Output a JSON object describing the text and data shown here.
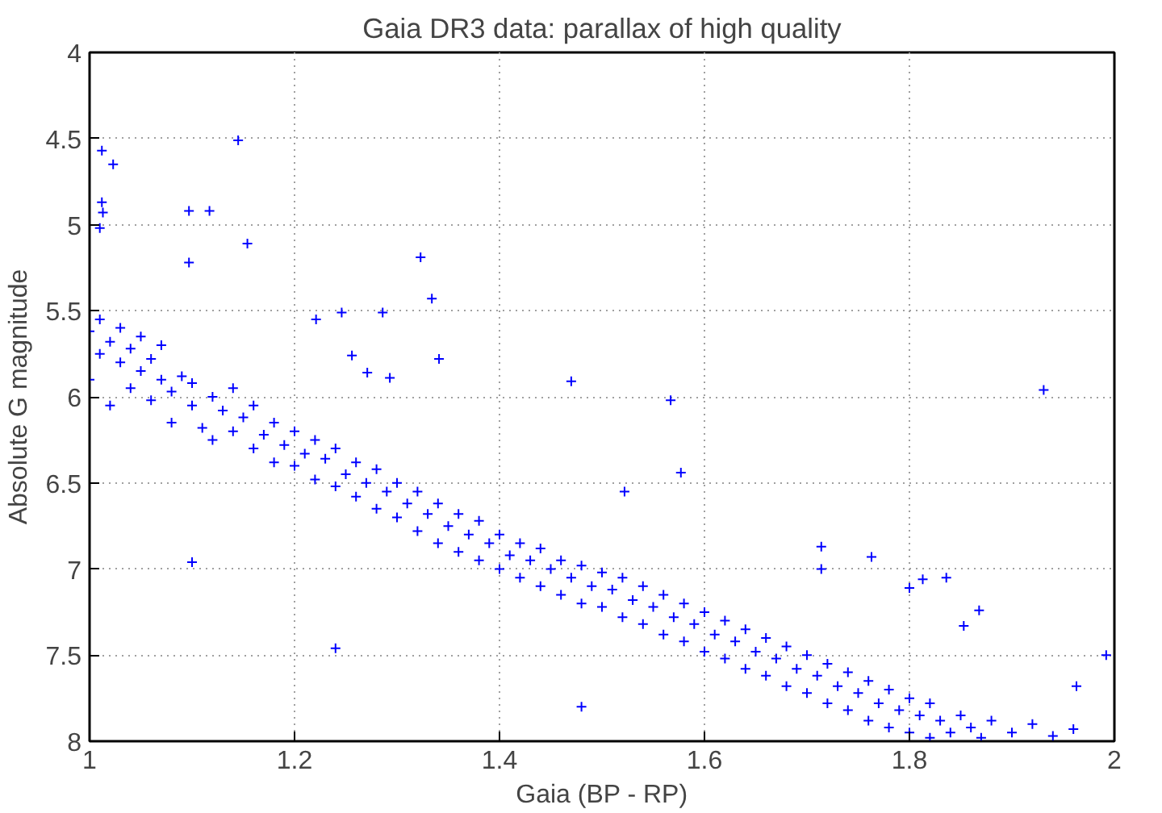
{
  "chart_data": {
    "type": "scatter",
    "title": "Gaia DR3 data: parallax of high quality",
    "xlabel": "Gaia (BP - RP)",
    "ylabel": "Absolute G magnitude",
    "xlim": [
      1,
      2
    ],
    "ylim": [
      8,
      4
    ],
    "xticks": [
      1,
      1.2,
      1.4,
      1.6,
      1.8,
      2
    ],
    "yticks": [
      4,
      4.5,
      5,
      5.5,
      6,
      6.5,
      7,
      7.5,
      8
    ],
    "grid": true,
    "marker": "cross",
    "series": [
      {
        "color": "#0000ff",
        "x": [
          1.012,
          1.023,
          1.145,
          1.012,
          1.013,
          1.01,
          1.097,
          1.117,
          1.154,
          1.097,
          1.323,
          1.334,
          1.341,
          1.271,
          1.221,
          1.246,
          1.286,
          1.256,
          1.47,
          1.293,
          1.714,
          1.714,
          1.763,
          1.813,
          1.836,
          1.8,
          1.868,
          1.853,
          1.567,
          1.577,
          1.522,
          1.963,
          1.992,
          1.931,
          1.1,
          1.24,
          1.48,
          1.0,
          1.0,
          1.01,
          1.01,
          1.02,
          1.02,
          1.03,
          1.03,
          1.04,
          1.04,
          1.05,
          1.05,
          1.06,
          1.06,
          1.07,
          1.07,
          1.08,
          1.08,
          1.09,
          1.1,
          1.1,
          1.11,
          1.12,
          1.12,
          1.13,
          1.14,
          1.14,
          1.15,
          1.16,
          1.16,
          1.17,
          1.18,
          1.18,
          1.19,
          1.2,
          1.2,
          1.21,
          1.22,
          1.22,
          1.23,
          1.24,
          1.24,
          1.25,
          1.26,
          1.26,
          1.27,
          1.28,
          1.28,
          1.29,
          1.3,
          1.3,
          1.31,
          1.32,
          1.32,
          1.33,
          1.34,
          1.34,
          1.35,
          1.36,
          1.36,
          1.37,
          1.38,
          1.38,
          1.39,
          1.4,
          1.4,
          1.41,
          1.42,
          1.42,
          1.43,
          1.44,
          1.44,
          1.45,
          1.46,
          1.46,
          1.47,
          1.48,
          1.48,
          1.49,
          1.5,
          1.5,
          1.51,
          1.52,
          1.52,
          1.53,
          1.54,
          1.54,
          1.55,
          1.56,
          1.56,
          1.57,
          1.58,
          1.58,
          1.59,
          1.6,
          1.6,
          1.61,
          1.62,
          1.62,
          1.63,
          1.64,
          1.64,
          1.65,
          1.66,
          1.66,
          1.67,
          1.68,
          1.68,
          1.69,
          1.7,
          1.7,
          1.71,
          1.72,
          1.72,
          1.73,
          1.74,
          1.74,
          1.75,
          1.76,
          1.76,
          1.77,
          1.78,
          1.78,
          1.79,
          1.8,
          1.8,
          1.81,
          1.82,
          1.82,
          1.83,
          1.84,
          1.85,
          1.86,
          1.87,
          1.88,
          1.9,
          1.92,
          1.94,
          1.96
        ],
        "values": [
          4.57,
          4.65,
          4.51,
          4.87,
          4.93,
          5.02,
          4.92,
          4.92,
          5.11,
          5.22,
          5.19,
          5.43,
          5.78,
          5.86,
          5.55,
          5.51,
          5.51,
          5.76,
          5.91,
          5.89,
          6.87,
          7.0,
          6.93,
          7.06,
          7.05,
          7.11,
          7.24,
          7.33,
          6.02,
          6.44,
          6.55,
          7.68,
          7.5,
          5.96,
          6.96,
          7.46,
          7.8,
          5.62,
          5.9,
          5.55,
          5.75,
          5.68,
          6.05,
          5.8,
          5.6,
          5.72,
          5.95,
          5.85,
          5.65,
          5.78,
          6.02,
          5.9,
          5.7,
          5.97,
          6.15,
          5.88,
          6.05,
          5.92,
          6.18,
          6.0,
          6.25,
          6.08,
          6.2,
          5.95,
          6.12,
          6.3,
          6.05,
          6.22,
          6.38,
          6.15,
          6.28,
          6.4,
          6.2,
          6.33,
          6.48,
          6.25,
          6.36,
          6.52,
          6.3,
          6.45,
          6.58,
          6.38,
          6.5,
          6.65,
          6.42,
          6.55,
          6.7,
          6.5,
          6.62,
          6.78,
          6.55,
          6.68,
          6.85,
          6.62,
          6.75,
          6.9,
          6.68,
          6.8,
          6.95,
          6.72,
          6.85,
          7.0,
          6.8,
          6.92,
          7.05,
          6.85,
          6.95,
          7.1,
          6.88,
          7.0,
          7.15,
          6.95,
          7.05,
          7.2,
          6.98,
          7.1,
          7.22,
          7.02,
          7.12,
          7.28,
          7.05,
          7.18,
          7.32,
          7.1,
          7.22,
          7.38,
          7.15,
          7.28,
          7.42,
          7.2,
          7.32,
          7.48,
          7.25,
          7.38,
          7.52,
          7.3,
          7.42,
          7.58,
          7.35,
          7.48,
          7.62,
          7.4,
          7.52,
          7.68,
          7.45,
          7.58,
          7.72,
          7.5,
          7.62,
          7.78,
          7.55,
          7.68,
          7.82,
          7.6,
          7.72,
          7.88,
          7.65,
          7.78,
          7.92,
          7.7,
          7.82,
          7.95,
          7.75,
          7.85,
          7.98,
          7.78,
          7.88,
          7.95,
          7.85,
          7.92,
          7.98,
          7.88,
          7.95,
          7.9,
          7.97,
          7.93
        ]
      }
    ]
  }
}
